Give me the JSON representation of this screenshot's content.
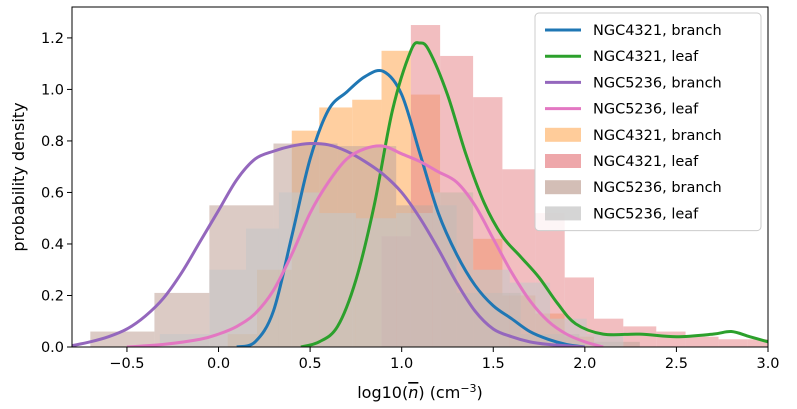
{
  "chart_data": {
    "type": "histogram+kde",
    "title": "",
    "xlabel": "log10(n̅) (cm⁻³)",
    "xlabel_parts": {
      "pre": "log10(",
      "var": "n",
      "post": ") (cm",
      "sup": "−3",
      "close": ")"
    },
    "ylabel": "probability density",
    "xlim": [
      -0.8,
      3.0
    ],
    "ylim": [
      0.0,
      1.32
    ],
    "xticks": [
      -0.5,
      0.0,
      0.5,
      1.0,
      1.5,
      2.0,
      2.5,
      3.0
    ],
    "xtick_labels": [
      "−0.5",
      "0.0",
      "0.5",
      "1.0",
      "1.5",
      "2.0",
      "2.5",
      "3.0"
    ],
    "yticks": [
      0.0,
      0.2,
      0.4,
      0.6,
      0.8,
      1.0,
      1.2
    ],
    "ytick_labels": [
      "0.0",
      "0.2",
      "0.4",
      "0.6",
      "0.8",
      "1.0",
      "1.2"
    ],
    "legend_position": "top-right",
    "kde_series": [
      {
        "name": "NGC4321, branch",
        "color": "#1f77b4",
        "x": [
          0.1,
          0.2,
          0.3,
          0.4,
          0.5,
          0.6,
          0.7,
          0.8,
          0.9,
          1.0,
          1.1,
          1.2,
          1.3,
          1.4,
          1.5,
          1.6,
          1.7,
          1.8,
          1.9,
          2.0
        ],
        "y": [
          0.0,
          0.02,
          0.14,
          0.43,
          0.73,
          0.92,
          0.99,
          1.05,
          1.07,
          0.98,
          0.75,
          0.52,
          0.36,
          0.24,
          0.16,
          0.11,
          0.06,
          0.03,
          0.01,
          0.0
        ]
      },
      {
        "name": "NGC4321, leaf",
        "color": "#2ca02c",
        "x": [
          0.45,
          0.55,
          0.65,
          0.75,
          0.85,
          0.95,
          1.05,
          1.1,
          1.15,
          1.25,
          1.35,
          1.45,
          1.55,
          1.65,
          1.75,
          1.85,
          1.95,
          2.1,
          2.3,
          2.5,
          2.7,
          2.8,
          2.9,
          3.0
        ],
        "y": [
          0.0,
          0.02,
          0.08,
          0.26,
          0.55,
          0.92,
          1.15,
          1.18,
          1.15,
          0.98,
          0.75,
          0.56,
          0.43,
          0.35,
          0.27,
          0.17,
          0.09,
          0.05,
          0.05,
          0.04,
          0.05,
          0.06,
          0.04,
          0.02
        ]
      },
      {
        "name": "NGC5236, branch",
        "color": "#9467bd",
        "x": [
          -0.8,
          -0.7,
          -0.6,
          -0.5,
          -0.4,
          -0.3,
          -0.2,
          -0.1,
          0.0,
          0.1,
          0.2,
          0.3,
          0.4,
          0.5,
          0.6,
          0.7,
          0.8,
          0.9,
          1.0,
          1.1,
          1.2,
          1.3,
          1.4,
          1.5,
          1.6,
          1.7,
          1.8,
          1.9,
          2.0
        ],
        "y": [
          0.005,
          0.02,
          0.04,
          0.07,
          0.12,
          0.19,
          0.29,
          0.41,
          0.53,
          0.65,
          0.73,
          0.76,
          0.78,
          0.79,
          0.785,
          0.76,
          0.72,
          0.67,
          0.6,
          0.5,
          0.38,
          0.25,
          0.14,
          0.07,
          0.04,
          0.02,
          0.01,
          0.005,
          0.0
        ]
      },
      {
        "name": "NGC5236, leaf",
        "color": "#e377c2",
        "x": [
          -0.5,
          -0.3,
          -0.1,
          0.0,
          0.1,
          0.2,
          0.3,
          0.4,
          0.5,
          0.6,
          0.7,
          0.8,
          0.9,
          1.0,
          1.1,
          1.2,
          1.3,
          1.4,
          1.5,
          1.6,
          1.7,
          1.8,
          1.9,
          2.0,
          2.1
        ],
        "y": [
          0.0,
          0.01,
          0.03,
          0.05,
          0.08,
          0.13,
          0.22,
          0.36,
          0.52,
          0.64,
          0.73,
          0.77,
          0.78,
          0.75,
          0.72,
          0.68,
          0.64,
          0.55,
          0.42,
          0.29,
          0.18,
          0.1,
          0.05,
          0.02,
          0.0
        ]
      }
    ],
    "hist_series": [
      {
        "name": "NGC4321, branch",
        "color": "#ffbb78",
        "opacity": 0.7,
        "bin_edges": [
          0.05,
          0.21,
          0.4,
          0.55,
          0.73,
          0.89,
          1.05,
          1.21,
          1.39,
          1.55,
          1.73,
          1.89,
          2.05
        ],
        "values": [
          0.05,
          0.3,
          0.84,
          0.93,
          0.96,
          1.15,
          0.98,
          0.6,
          0.42,
          0.2,
          0.13,
          0.04
        ]
      },
      {
        "name": "NGC4321, leaf",
        "color": "#e8898d",
        "opacity": 0.55,
        "bin_edges": [
          0.89,
          1.05,
          1.21,
          1.39,
          1.55,
          1.73,
          1.89,
          2.05,
          2.21,
          2.39,
          2.55,
          2.73,
          2.89,
          3.05
        ],
        "values": [
          0.43,
          1.25,
          1.13,
          0.97,
          0.69,
          0.52,
          0.27,
          0.11,
          0.08,
          0.06,
          0.04,
          0.03,
          0.03
        ]
      },
      {
        "name": "NGC5236, branch",
        "color": "#c4a89e",
        "opacity": 0.6,
        "bin_edges": [
          -0.7,
          -0.35,
          -0.05,
          0.3,
          0.65,
          0.97,
          1.3,
          1.65,
          1.97,
          2.3
        ],
        "values": [
          0.06,
          0.21,
          0.55,
          0.79,
          0.78,
          0.55,
          0.21,
          0.05,
          0.02
        ]
      },
      {
        "name": "NGC5236, leaf",
        "color": "#c7c7c7",
        "opacity": 0.6,
        "bin_edges": [
          -0.32,
          -0.05,
          0.15,
          0.33,
          0.55,
          0.75,
          0.97,
          1.17,
          1.39,
          1.59,
          1.81,
          2.01,
          2.21
        ],
        "values": [
          0.05,
          0.3,
          0.46,
          0.6,
          0.52,
          0.5,
          0.52,
          0.6,
          0.3,
          0.25,
          0.11,
          0.05
        ]
      }
    ],
    "legend_entries": [
      {
        "label": "NGC4321, branch",
        "kind": "line",
        "color": "#1f77b4"
      },
      {
        "label": "NGC4321, leaf",
        "kind": "line",
        "color": "#2ca02c"
      },
      {
        "label": "NGC5236, branch",
        "kind": "line",
        "color": "#9467bd"
      },
      {
        "label": "NGC5236, leaf",
        "kind": "line",
        "color": "#e377c2"
      },
      {
        "label": "NGC4321, branch",
        "kind": "patch",
        "color": "#ffbb78"
      },
      {
        "label": "NGC4321, leaf",
        "kind": "patch",
        "color": "#e8898d"
      },
      {
        "label": "NGC5236, branch",
        "kind": "patch",
        "color": "#c4a89e"
      },
      {
        "label": "NGC5236, leaf",
        "kind": "patch",
        "color": "#c7c7c7"
      }
    ]
  }
}
